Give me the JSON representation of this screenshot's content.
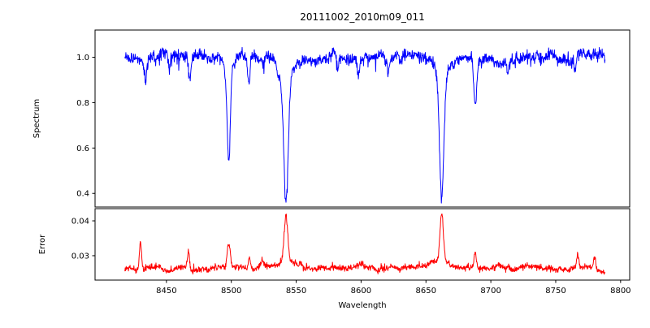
{
  "figure": {
    "background": "#ffffff",
    "axis_color": "#000000"
  },
  "chart_data": {
    "type": "line",
    "title": "20111002_2010m09_011",
    "xlabel": "Wavelength",
    "xlim": [
      8395,
      8807
    ],
    "xticks": [
      8450,
      8500,
      8550,
      8600,
      8650,
      8700,
      8750,
      8800
    ],
    "xticklabels": [
      "8450",
      "8500",
      "8550",
      "8600",
      "8650",
      "8700",
      "8750",
      "8800"
    ],
    "grid": false,
    "legend": "none",
    "panels": [
      {
        "name": "spectrum",
        "ylabel": "Spectrum",
        "color": "#0000ff",
        "ylim": [
          0.34,
          1.12
        ],
        "yticks": [
          0.4,
          0.6,
          0.8,
          1.0
        ],
        "yticklabels": [
          "0.4",
          "0.6",
          "0.8",
          "1.0"
        ],
        "model": {
          "points": 1500,
          "x_start": 8418,
          "x_end": 8788,
          "base": 1.0,
          "noise_sigma": 0.012,
          "walk": 0.0035,
          "spike_prob": 0.02,
          "spike_amp": 0.05,
          "spike_sign": -1,
          "features": [
            {
              "center": 8434,
              "amp": -0.09,
              "sigma": 0.9
            },
            {
              "center": 8452,
              "amp": -0.05,
              "sigma": 0.8
            },
            {
              "center": 8468,
              "amp": -0.09,
              "sigma": 0.9
            },
            {
              "center": 8498,
              "amp": -0.4,
              "sigma": 1.2
            },
            {
              "center": 8498,
              "amp": -0.05,
              "sigma": 3.5
            },
            {
              "center": 8513.5,
              "amp": -0.13,
              "sigma": 1.0
            },
            {
              "center": 8542.1,
              "amp": -0.52,
              "sigma": 1.7
            },
            {
              "center": 8542.1,
              "amp": -0.11,
              "sigma": 5.0
            },
            {
              "center": 8582,
              "amp": -0.07,
              "sigma": 0.8
            },
            {
              "center": 8598,
              "amp": -0.07,
              "sigma": 0.8
            },
            {
              "center": 8621,
              "amp": -0.06,
              "sigma": 0.8
            },
            {
              "center": 8662.1,
              "amp": -0.52,
              "sigma": 1.6
            },
            {
              "center": 8662.1,
              "amp": -0.1,
              "sigma": 4.5
            },
            {
              "center": 8688,
              "amp": -0.21,
              "sigma": 1.1
            },
            {
              "center": 8713,
              "amp": -0.06,
              "sigma": 0.8
            },
            {
              "center": 8765,
              "amp": -0.07,
              "sigma": 0.8
            }
          ]
        }
      },
      {
        "name": "error",
        "ylabel": "Error",
        "color": "#ff0000",
        "ylim": [
          0.023,
          0.0435
        ],
        "yticks": [
          0.03,
          0.04
        ],
        "yticklabels": [
          "0.03",
          "0.04"
        ],
        "model": {
          "points": 1500,
          "x_start": 8418,
          "x_end": 8788,
          "base": 0.0265,
          "noise_sigma": 0.00042,
          "walk": 0.00012,
          "spike_prob": 0.02,
          "spike_amp": 0.0012,
          "spike_sign": 1,
          "features": [
            {
              "center": 8430,
              "amp": 0.0075,
              "sigma": 0.8
            },
            {
              "center": 8467,
              "amp": 0.0048,
              "sigma": 0.8
            },
            {
              "center": 8498,
              "amp": 0.0068,
              "sigma": 1.1
            },
            {
              "center": 8514,
              "amp": 0.0028,
              "sigma": 0.9
            },
            {
              "center": 8524,
              "amp": 0.0018,
              "sigma": 1.5
            },
            {
              "center": 8542.1,
              "amp": 0.0135,
              "sigma": 1.4
            },
            {
              "center": 8542.1,
              "amp": 0.0018,
              "sigma": 5.0
            },
            {
              "center": 8600,
              "amp": 0.0012,
              "sigma": 1.0
            },
            {
              "center": 8662.1,
              "amp": 0.0135,
              "sigma": 1.3
            },
            {
              "center": 8662.1,
              "amp": 0.0015,
              "sigma": 4.0
            },
            {
              "center": 8688,
              "amp": 0.0042,
              "sigma": 0.9
            },
            {
              "center": 8767,
              "amp": 0.0042,
              "sigma": 0.8
            },
            {
              "center": 8780,
              "amp": 0.0038,
              "sigma": 0.8
            }
          ]
        }
      }
    ]
  }
}
